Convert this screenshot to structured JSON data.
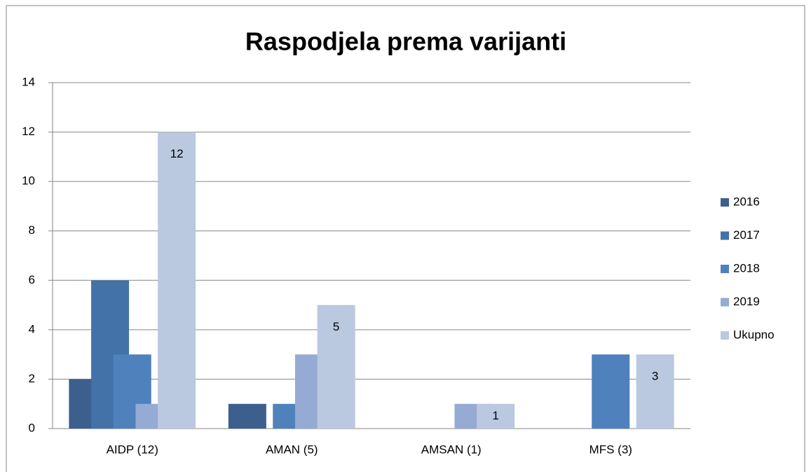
{
  "chart_data": {
    "type": "bar",
    "title": "Raspodjela prema varijanti",
    "categories": [
      "AIDP (12)",
      "AMAN (5)",
      "AMSAN (1)",
      "MFS (3)"
    ],
    "series": [
      {
        "name": "2016",
        "color": "#3c5f8e",
        "values": [
          2,
          1,
          0,
          0
        ]
      },
      {
        "name": "2017",
        "color": "#4372a8",
        "values": [
          6,
          0,
          0,
          0
        ]
      },
      {
        "name": "2018",
        "color": "#4f81bd",
        "values": [
          3,
          1,
          0,
          3
        ]
      },
      {
        "name": "2019",
        "color": "#95abd3",
        "values": [
          1,
          3,
          1,
          0
        ]
      },
      {
        "name": "Ukupno",
        "color": "#bac8e0",
        "values": [
          12,
          5,
          1,
          3
        ],
        "show_labels": true
      }
    ],
    "ylim": [
      0,
      14
    ],
    "yticks": [
      0,
      2,
      4,
      6,
      8,
      10,
      12,
      14
    ],
    "grid": true,
    "legend": "right"
  }
}
